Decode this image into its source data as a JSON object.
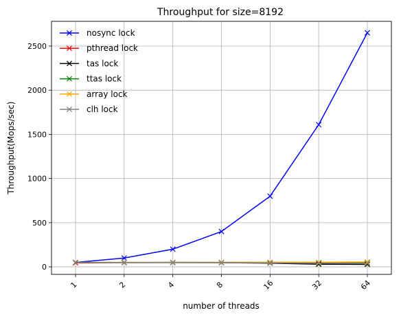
{
  "chart_data": {
    "type": "line",
    "title": "Throughput for size=8192",
    "xlabel": "number of threads",
    "ylabel": "Throughput(Mops/sec)",
    "categories": [
      "1",
      "2",
      "4",
      "8",
      "16",
      "32",
      "64"
    ],
    "ylim": [
      -85,
      2780
    ],
    "yticks": [
      0,
      500,
      1000,
      1500,
      2000,
      2500
    ],
    "grid": true,
    "legend_position": "top-left",
    "marker": "x",
    "series": [
      {
        "name": "nosync lock",
        "color": "#0000ff",
        "values": [
          50,
          100,
          200,
          400,
          800,
          1610,
          2650
        ]
      },
      {
        "name": "pthread lock",
        "color": "#ff0000",
        "values": [
          45,
          48,
          50,
          50,
          50,
          48,
          48
        ]
      },
      {
        "name": "tas lock",
        "color": "#000000",
        "values": [
          50,
          48,
          48,
          47,
          42,
          30,
          28
        ]
      },
      {
        "name": "ttas lock",
        "color": "#008000",
        "values": [
          50,
          50,
          50,
          50,
          50,
          47,
          47
        ]
      },
      {
        "name": "array lock",
        "color": "#ffa500",
        "values": [
          50,
          50,
          50,
          50,
          52,
          52,
          55
        ]
      },
      {
        "name": "clh lock",
        "color": "#808080",
        "values": [
          50,
          48,
          48,
          47,
          45,
          42,
          40
        ]
      }
    ]
  }
}
